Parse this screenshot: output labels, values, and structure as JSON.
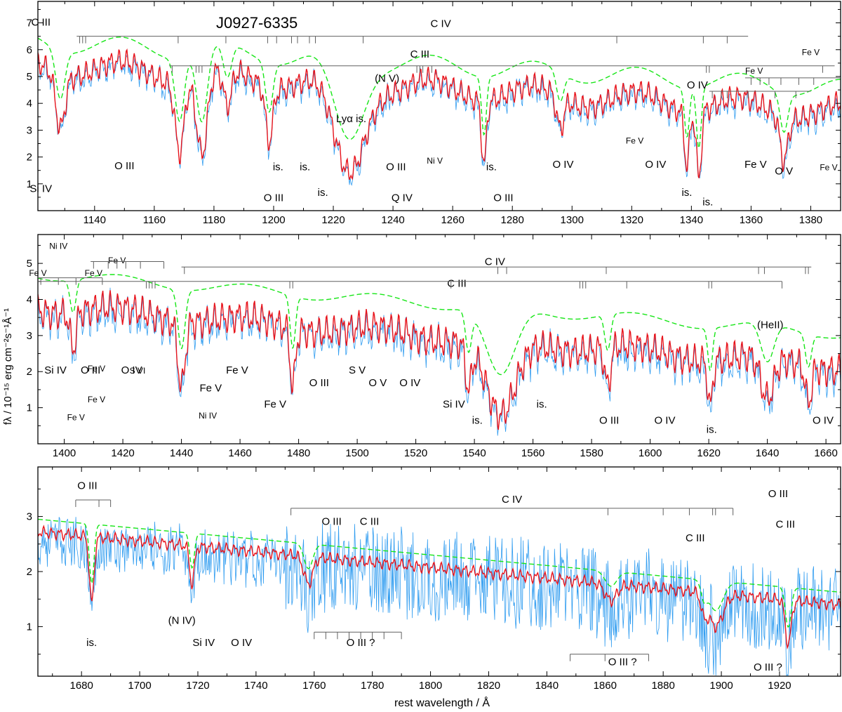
{
  "figure": {
    "object_name": "J0927-6335",
    "ylabel": "fλ / 10⁻¹⁵ erg cm⁻²s⁻¹Å⁻¹",
    "xlabel": "rest wavelength / Å"
  },
  "colors": {
    "observed": "#2f9cf0",
    "model": "#e8141c",
    "continuum": "#17e617",
    "line_ids": "#606060"
  },
  "chart_data": [
    {
      "type": "line",
      "panel": "top",
      "xlim": [
        1121,
        1390
      ],
      "ylim": [
        0,
        7.8
      ],
      "xticks": [
        1140,
        1160,
        1180,
        1200,
        1220,
        1240,
        1260,
        1280,
        1300,
        1320,
        1340,
        1360,
        1380
      ],
      "yticks": [
        1,
        2,
        3,
        4,
        5,
        6,
        7
      ],
      "series": [
        {
          "role": "observed",
          "style": "blue noisy"
        },
        {
          "role": "model",
          "style": "red solid"
        },
        {
          "role": "continuum",
          "style": "green dashed"
        }
      ],
      "broad_absorptions": [
        {
          "center": 1128.5,
          "width": 1.5,
          "depth": 2.0
        },
        {
          "center": 1168.5,
          "width": 1.5,
          "depth": 2.6
        },
        {
          "center": 1176,
          "width": 1.8,
          "depth": 3.0
        },
        {
          "center": 1184.5,
          "width": 1.4,
          "depth": 1.4
        },
        {
          "center": 1198.5,
          "width": 1.2,
          "depth": 2.0
        },
        {
          "center": 1225,
          "width": 5,
          "depth": 3.4
        },
        {
          "center": 1270.5,
          "width": 0.8,
          "depth": 2.4
        },
        {
          "center": 1296,
          "width": 1.2,
          "depth": 1.2
        },
        {
          "center": 1338.5,
          "width": 0.8,
          "depth": 2.0
        },
        {
          "center": 1342.5,
          "width": 0.8,
          "depth": 2.5
        },
        {
          "center": 1371,
          "width": 1.3,
          "depth": 1.6
        }
      ],
      "annotations": [
        {
          "text": "C III",
          "x": 1122,
          "y": 6.9,
          "size": "normal"
        },
        {
          "text": "C IV",
          "x": 1256,
          "y": 6.85,
          "size": "normal"
        },
        {
          "text": "C III",
          "x": 1249,
          "y": 5.7,
          "size": "normal"
        },
        {
          "text": "(N V)",
          "x": 1238,
          "y": 4.8,
          "size": "normal"
        },
        {
          "text": "Lyα is.",
          "x": 1226,
          "y": 3.3,
          "size": "normal"
        },
        {
          "text": "O IV",
          "x": 1342,
          "y": 4.55,
          "size": "normal"
        },
        {
          "text": "Fe V",
          "x": 1380,
          "y": 5.8,
          "size": "small"
        },
        {
          "text": "Fe V",
          "x": 1361,
          "y": 5.1,
          "size": "small"
        },
        {
          "text": "Fe V",
          "x": 1321,
          "y": 2.5,
          "size": "small"
        },
        {
          "text": "Si IV",
          "x": 1122,
          "y": 0.7,
          "size": "normal"
        },
        {
          "text": "O III",
          "x": 1150,
          "y": 1.55,
          "size": "normal"
        },
        {
          "text": "is.",
          "x": 1201.5,
          "y": 1.5,
          "size": "normal"
        },
        {
          "text": "is.",
          "x": 1210.5,
          "y": 1.5,
          "size": "normal"
        },
        {
          "text": "is.",
          "x": 1216.5,
          "y": 0.55,
          "size": "normal"
        },
        {
          "text": "O III",
          "x": 1200,
          "y": 0.35,
          "size": "normal"
        },
        {
          "text": "O III",
          "x": 1241,
          "y": 1.5,
          "size": "normal"
        },
        {
          "text": "Q IV",
          "x": 1243,
          "y": 0.35,
          "size": "normal"
        },
        {
          "text": "Ni V",
          "x": 1254,
          "y": 1.75,
          "size": "small"
        },
        {
          "text": "is.",
          "x": 1273,
          "y": 1.5,
          "size": "normal"
        },
        {
          "text": "O III",
          "x": 1277,
          "y": 0.35,
          "size": "normal"
        },
        {
          "text": "O IV",
          "x": 1297,
          "y": 1.6,
          "size": "normal"
        },
        {
          "text": "O IV",
          "x": 1328,
          "y": 1.6,
          "size": "normal"
        },
        {
          "text": "is.",
          "x": 1338.5,
          "y": 0.55,
          "size": "normal"
        },
        {
          "text": "is.",
          "x": 1345.5,
          "y": 0.2,
          "size": "normal"
        },
        {
          "text": "Fe V",
          "x": 1361.5,
          "y": 1.6,
          "size": "normal"
        },
        {
          "text": "O V",
          "x": 1371,
          "y": 1.35,
          "size": "normal"
        },
        {
          "text": "Fe V",
          "x": 1386,
          "y": 1.5,
          "size": "small"
        }
      ]
    },
    {
      "type": "line",
      "panel": "middle",
      "xlim": [
        1391,
        1665
      ],
      "ylim": [
        0,
        5.8
      ],
      "xticks": [
        1400,
        1420,
        1440,
        1460,
        1480,
        1500,
        1520,
        1540,
        1560,
        1580,
        1600,
        1620,
        1640,
        1660
      ],
      "yticks": [
        1,
        2,
        3,
        4,
        5
      ],
      "series": [
        {
          "role": "observed",
          "style": "blue noisy"
        },
        {
          "role": "model",
          "style": "red solid"
        },
        {
          "role": "continuum",
          "style": "green dashed"
        }
      ],
      "broad_absorptions": [
        {
          "center": 1549,
          "width": 5,
          "depth": 2.2
        },
        {
          "center": 1640,
          "width": 2.2,
          "depth": 1.2
        },
        {
          "center": 1585.5,
          "width": 1,
          "depth": 1.1
        },
        {
          "center": 1620.5,
          "width": 0.8,
          "depth": 1.3
        },
        {
          "center": 1538,
          "width": 1,
          "depth": 1.2
        },
        {
          "center": 1440,
          "width": 1.2,
          "depth": 1.8
        },
        {
          "center": 1478,
          "width": 0.9,
          "depth": 1.6
        },
        {
          "center": 1403,
          "width": 1,
          "depth": 1.0
        },
        {
          "center": 1654,
          "width": 1,
          "depth": 1.0
        }
      ],
      "annotations": [
        {
          "text": "Ni IV",
          "x": 1398,
          "y": 5.4,
          "size": "small"
        },
        {
          "text": "Fe V",
          "x": 1418,
          "y": 5.0,
          "size": "small"
        },
        {
          "text": "Fe V",
          "x": 1391,
          "y": 4.65,
          "size": "small"
        },
        {
          "text": "Fe V",
          "x": 1410,
          "y": 4.65,
          "size": "small"
        },
        {
          "text": "C IV",
          "x": 1547,
          "y": 4.95,
          "size": "normal"
        },
        {
          "text": "C III",
          "x": 1534,
          "y": 4.35,
          "size": "normal"
        },
        {
          "text": "(HeII)",
          "x": 1641,
          "y": 3.2,
          "size": "normal"
        },
        {
          "text": "Si IV",
          "x": 1397,
          "y": 1.95,
          "size": "normal"
        },
        {
          "text": "O III",
          "x": 1409,
          "y": 1.95,
          "size": "normal"
        },
        {
          "text": "Fe V",
          "x": 1411,
          "y": 2.0,
          "size": "small"
        },
        {
          "text": "O IV",
          "x": 1423,
          "y": 1.95,
          "size": "normal"
        },
        {
          "text": "S VI",
          "x": 1425,
          "y": 1.95,
          "size": "small"
        },
        {
          "text": "Fe V",
          "x": 1459,
          "y": 1.95,
          "size": "normal"
        },
        {
          "text": "Fe V",
          "x": 1450,
          "y": 1.45,
          "size": "normal"
        },
        {
          "text": "Fe V",
          "x": 1472,
          "y": 1.0,
          "size": "normal"
        },
        {
          "text": "Fe V",
          "x": 1411,
          "y": 1.15,
          "size": "small"
        },
        {
          "text": "Fe V",
          "x": 1404,
          "y": 0.65,
          "size": "small"
        },
        {
          "text": "Ni IV",
          "x": 1449,
          "y": 0.7,
          "size": "small"
        },
        {
          "text": "O III",
          "x": 1487,
          "y": 1.6,
          "size": "normal"
        },
        {
          "text": "S V",
          "x": 1500,
          "y": 1.95,
          "size": "normal"
        },
        {
          "text": "O V",
          "x": 1507,
          "y": 1.6,
          "size": "normal"
        },
        {
          "text": "O IV",
          "x": 1518,
          "y": 1.6,
          "size": "normal"
        },
        {
          "text": "Si IV",
          "x": 1533,
          "y": 1.0,
          "size": "normal"
        },
        {
          "text": "is.",
          "x": 1541,
          "y": 0.55,
          "size": "normal"
        },
        {
          "text": "is.",
          "x": 1563,
          "y": 1.0,
          "size": "normal"
        },
        {
          "text": "O III",
          "x": 1586,
          "y": 0.55,
          "size": "normal"
        },
        {
          "text": "O IV",
          "x": 1605,
          "y": 0.55,
          "size": "normal"
        },
        {
          "text": "is.",
          "x": 1621,
          "y": 0.3,
          "size": "normal"
        },
        {
          "text": "O IV",
          "x": 1659,
          "y": 0.55,
          "size": "normal"
        }
      ]
    },
    {
      "type": "line",
      "panel": "bottom",
      "xlim": [
        1665,
        1941
      ],
      "ylim": [
        0.1,
        3.9
      ],
      "xticks": [
        1680,
        1700,
        1720,
        1740,
        1760,
        1780,
        1800,
        1820,
        1840,
        1860,
        1880,
        1900,
        1920
      ],
      "yticks": [
        1,
        2,
        3
      ],
      "series": [
        {
          "role": "observed",
          "style": "blue noisy"
        },
        {
          "role": "model",
          "style": "red solid"
        },
        {
          "role": "continuum",
          "style": "green dashed"
        }
      ],
      "broad_absorptions": [
        {
          "center": 1683.5,
          "width": 0.8,
          "depth": 1.2
        },
        {
          "center": 1718,
          "width": 0.8,
          "depth": 0.7
        },
        {
          "center": 1898,
          "width": 2.5,
          "depth": 0.6
        },
        {
          "center": 1862,
          "width": 2,
          "depth": 0.3
        },
        {
          "center": 1923,
          "width": 1,
          "depth": 0.8
        },
        {
          "center": 1758,
          "width": 1.5,
          "depth": 0.5
        },
        {
          "center": 1894,
          "width": 1,
          "depth": 0.3
        }
      ],
      "annotations": [
        {
          "text": "O III",
          "x": 1682,
          "y": 3.5,
          "size": "normal"
        },
        {
          "text": "C IV",
          "x": 1828,
          "y": 3.25,
          "size": "normal"
        },
        {
          "text": "O III",
          "x": 1919.5,
          "y": 3.35,
          "size": "normal"
        },
        {
          "text": "C III",
          "x": 1891,
          "y": 2.55,
          "size": "normal"
        },
        {
          "text": "C III",
          "x": 1922,
          "y": 2.8,
          "size": "normal"
        },
        {
          "text": "O III",
          "x": 1766,
          "y": 2.85,
          "size": "normal"
        },
        {
          "text": "C III",
          "x": 1779,
          "y": 2.85,
          "size": "normal"
        },
        {
          "text": "(N IV)",
          "x": 1714.5,
          "y": 1.05,
          "size": "normal"
        },
        {
          "text": "is.",
          "x": 1683.5,
          "y": 0.65,
          "size": "normal"
        },
        {
          "text": "Si IV",
          "x": 1722,
          "y": 0.65,
          "size": "normal"
        },
        {
          "text": "O IV",
          "x": 1735,
          "y": 0.65,
          "size": "normal"
        },
        {
          "text": "O III ?",
          "x": 1776,
          "y": 0.65,
          "size": "normal"
        },
        {
          "text": "O III ?",
          "x": 1866,
          "y": 0.3,
          "size": "normal"
        },
        {
          "text": "O III ?",
          "x": 1916,
          "y": 0.2,
          "size": "normal"
        }
      ]
    }
  ]
}
